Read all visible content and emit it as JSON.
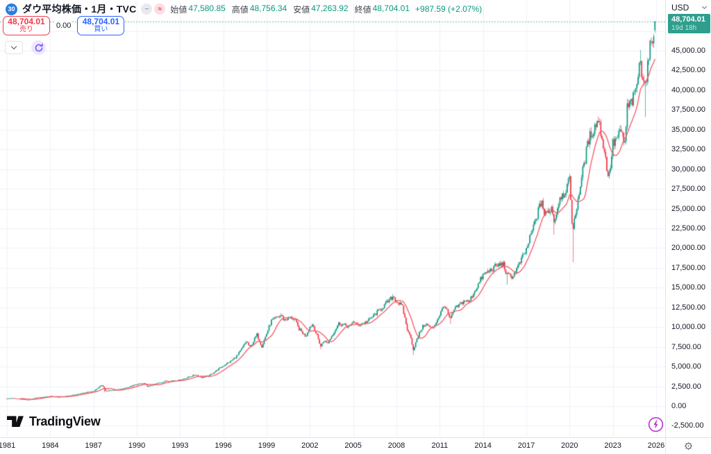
{
  "colors": {
    "up": "#089981",
    "down": "#f23645",
    "ma_line": "#f3626d",
    "grid": "#f0f2fa",
    "axis_border": "#e0e3eb",
    "text": "#131722",
    "muted_text": "#434651",
    "teal_value": "#089981",
    "dotted_line": "#5fbdb0",
    "price_badge_bg": "#2f9e8e",
    "sell_red": "#f23645",
    "buy_blue": "#2962ff",
    "logo_badge_blue": "#2a7de2",
    "refresh_purple": "#7c5cfc",
    "flash_purple": "#bb36ce",
    "pill_gray_bg": "#e8eaf0",
    "pill_pink_bg": "#fbdee3"
  },
  "header": {
    "symbol_logo": "30",
    "title": "ダウ平均株価・1月・TVC",
    "indicator_icons": {
      "minus": "−",
      "wave": "≈"
    },
    "ohlc": [
      {
        "label": "始値",
        "value": "47,580.85"
      },
      {
        "label": "高値",
        "value": "48,756.34"
      },
      {
        "label": "安値",
        "value": "47,263.92"
      },
      {
        "label": "終値",
        "value": "48,704.01"
      }
    ],
    "change": "+987.59 (+2.07%)"
  },
  "trade_panel": {
    "sell_price": "48,704.01",
    "sell_label": "売り",
    "spread": "0.00",
    "buy_price": "48,704.01",
    "buy_label": "買い"
  },
  "price_axis": {
    "currency": "USD",
    "current_price": "48,704.01",
    "countdown": "19d 18h",
    "ticks": [
      {
        "label": "45,000.00",
        "value": 45000
      },
      {
        "label": "42,500.00",
        "value": 42500
      },
      {
        "label": "40,000.00",
        "value": 40000
      },
      {
        "label": "37,500.00",
        "value": 37500
      },
      {
        "label": "35,000.00",
        "value": 35000
      },
      {
        "label": "32,500.00",
        "value": 32500
      },
      {
        "label": "30,000.00",
        "value": 30000
      },
      {
        "label": "27,500.00",
        "value": 27500
      },
      {
        "label": "25,000.00",
        "value": 25000
      },
      {
        "label": "22,500.00",
        "value": 22500
      },
      {
        "label": "20,000.00",
        "value": 20000
      },
      {
        "label": "17,500.00",
        "value": 17500
      },
      {
        "label": "15,000.00",
        "value": 15000
      },
      {
        "label": "12,500.00",
        "value": 12500
      },
      {
        "label": "10,000.00",
        "value": 10000
      },
      {
        "label": "7,500.00",
        "value": 7500
      },
      {
        "label": "5,000.00",
        "value": 5000
      },
      {
        "label": "2,500.00",
        "value": 2500
      },
      {
        "label": "0.00",
        "value": 0
      },
      {
        "label": "-2,500.00",
        "value": -2500
      }
    ]
  },
  "time_axis": {
    "years": [
      1981,
      1984,
      1987,
      1990,
      1993,
      1996,
      1999,
      2002,
      2005,
      2008,
      2011,
      2014,
      2017,
      2020,
      2023,
      2026
    ]
  },
  "branding": {
    "logo_text": "TradingView"
  },
  "chart_data": {
    "type": "candlestick",
    "title": "ダウ平均株価・1月・TVC",
    "symbol": "TVC / Dow Jones Industrial Average",
    "timeframe": "1 month",
    "xlim": [
      1980.6,
      2026.6
    ],
    "ylim": [
      -3950,
      51400
    ],
    "grid": true,
    "current_price": 48704.01,
    "price_step": 2500,
    "year_step": 3,
    "last_candle": {
      "open": 47580.85,
      "high": 48756.34,
      "low": 47263.92,
      "close": 48704.01
    },
    "ma": {
      "type": "SMA",
      "window": 12
    },
    "keypoints_monthly_close": [
      [
        1981.0,
        950
      ],
      [
        1981.33,
        1005
      ],
      [
        1982.0,
        875
      ],
      [
        1982.58,
        788
      ],
      [
        1983.0,
        1046
      ],
      [
        1984.0,
        1259
      ],
      [
        1984.5,
        1132
      ],
      [
        1985.0,
        1212
      ],
      [
        1986.0,
        1547
      ],
      [
        1986.7,
        1808
      ],
      [
        1987.0,
        1896
      ],
      [
        1987.62,
        2700
      ],
      [
        1987.79,
        1994
      ],
      [
        1987.9,
        1850
      ],
      [
        1988.0,
        1939
      ],
      [
        1989.0,
        2169
      ],
      [
        1990.0,
        2753
      ],
      [
        1990.5,
        2881
      ],
      [
        1990.79,
        2442
      ],
      [
        1991.0,
        2634
      ],
      [
        1991.98,
        3169
      ],
      [
        1993.0,
        3301
      ],
      [
        1994.08,
        3978
      ],
      [
        1994.5,
        3625
      ],
      [
        1995.0,
        3834
      ],
      [
        1996.0,
        5117
      ],
      [
        1996.5,
        5655
      ],
      [
        1997.0,
        6448
      ],
      [
        1997.6,
        8223
      ],
      [
        1997.83,
        7442
      ],
      [
        1998.0,
        7908
      ],
      [
        1998.33,
        9063
      ],
      [
        1998.66,
        7539
      ],
      [
        1999.0,
        9181
      ],
      [
        1999.33,
        10789
      ],
      [
        2000.0,
        11497
      ],
      [
        2000.2,
        10922
      ],
      [
        2000.7,
        11215
      ],
      [
        2001.0,
        10787
      ],
      [
        2001.2,
        9879
      ],
      [
        2001.7,
        8848
      ],
      [
        2002.0,
        10022
      ],
      [
        2002.2,
        10404
      ],
      [
        2002.75,
        7592
      ],
      [
        2003.0,
        8342
      ],
      [
        2003.2,
        7900
      ],
      [
        2004.0,
        10454
      ],
      [
        2004.8,
        10027
      ],
      [
        2005.0,
        10783
      ],
      [
        2005.3,
        10193
      ],
      [
        2006.0,
        10718
      ],
      [
        2007.0,
        12463
      ],
      [
        2007.79,
        13930
      ],
      [
        2008.0,
        13265
      ],
      [
        2008.4,
        12638
      ],
      [
        2008.8,
        9325
      ],
      [
        2009.0,
        8776
      ],
      [
        2009.17,
        7063
      ],
      [
        2009.25,
        7609
      ],
      [
        2009.7,
        9712
      ],
      [
        2010.0,
        10428
      ],
      [
        2010.5,
        9774
      ],
      [
        2011.0,
        11578
      ],
      [
        2011.33,
        12810
      ],
      [
        2011.73,
        10913
      ],
      [
        2012.0,
        12218
      ],
      [
        2012.75,
        13437
      ],
      [
        2013.0,
        13104
      ],
      [
        2014.0,
        16577
      ],
      [
        2015.0,
        17823
      ],
      [
        2015.4,
        18010
      ],
      [
        2015.67,
        16528
      ],
      [
        2016.08,
        16466
      ],
      [
        2016.5,
        17930
      ],
      [
        2017.0,
        19763
      ],
      [
        2018.08,
        26149
      ],
      [
        2018.25,
        24103
      ],
      [
        2018.75,
        25116
      ],
      [
        2018.95,
        23327
      ],
      [
        2019.33,
        26593
      ],
      [
        2019.6,
        26864
      ],
      [
        2020.0,
        28538
      ],
      [
        2020.12,
        25409
      ],
      [
        2020.21,
        21917
      ],
      [
        2020.6,
        26428
      ],
      [
        2021.0,
        30606
      ],
      [
        2021.35,
        33875
      ],
      [
        2022.0,
        36338
      ],
      [
        2022.35,
        32977
      ],
      [
        2022.72,
        28726
      ],
      [
        2023.0,
        33147
      ],
      [
        2023.6,
        34722
      ],
      [
        2023.83,
        33052
      ],
      [
        2024.0,
        37690
      ],
      [
        2024.5,
        39119
      ],
      [
        2024.92,
        43729
      ],
      [
        2025.0,
        42544
      ],
      [
        2025.25,
        40669
      ],
      [
        2025.5,
        44095
      ],
      [
        2025.67,
        46398
      ],
      [
        2025.83,
        47545
      ],
      [
        2025.917,
        48704
      ]
    ],
    "wick_lows": [
      [
        1987.79,
        1739
      ],
      [
        2002.75,
        7197
      ],
      [
        2009.17,
        6470
      ],
      [
        2011.73,
        10404
      ],
      [
        2015.67,
        15370
      ],
      [
        2018.95,
        21712
      ],
      [
        2020.21,
        18214
      ],
      [
        2025.25,
        36612
      ]
    ],
    "wick_highs": [
      [
        2000.0,
        11750
      ],
      [
        2007.79,
        14198
      ],
      [
        2024.92,
        45073
      ]
    ]
  }
}
